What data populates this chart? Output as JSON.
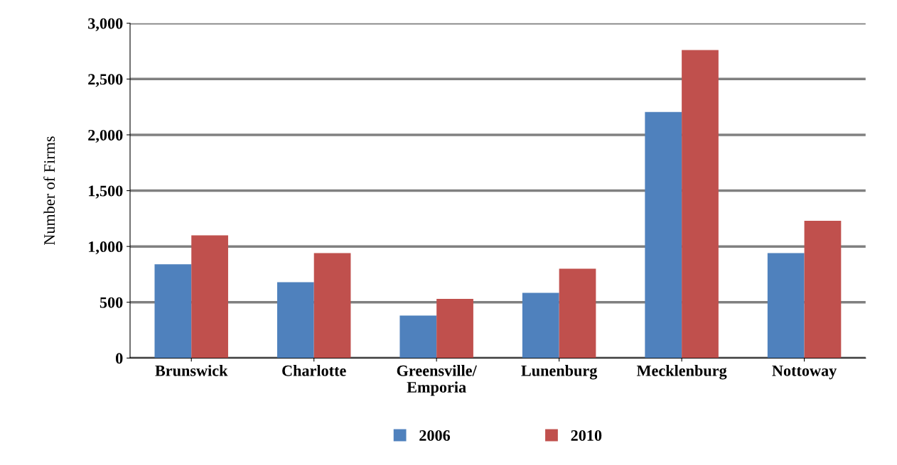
{
  "chart_data": {
    "type": "bar",
    "ylabel": "Number of Firms",
    "categories": [
      "Brunswick",
      "Charlotte",
      "Greensville/\nEmporia",
      "Lunenburg",
      "Mecklenburg",
      "Nottoway"
    ],
    "series": [
      {
        "name": "2006",
        "color": "#4f81bd",
        "values": [
          840,
          680,
          380,
          585,
          2205,
          940
        ]
      },
      {
        "name": "2010",
        "color": "#c0504d",
        "values": [
          1100,
          940,
          530,
          800,
          2760,
          1230
        ]
      }
    ],
    "ylim": [
      0,
      3000
    ],
    "yticks": [
      0,
      500,
      {
        "value": 1000,
        "label": "1,000"
      },
      {
        "value": 1500,
        "label": "1,500"
      },
      {
        "value": 2000,
        "label": "2,000"
      },
      {
        "value": 2500,
        "label": "2,500"
      },
      {
        "value": 3000,
        "label": "3,000"
      }
    ],
    "grid": "y",
    "legend": "bottom"
  }
}
